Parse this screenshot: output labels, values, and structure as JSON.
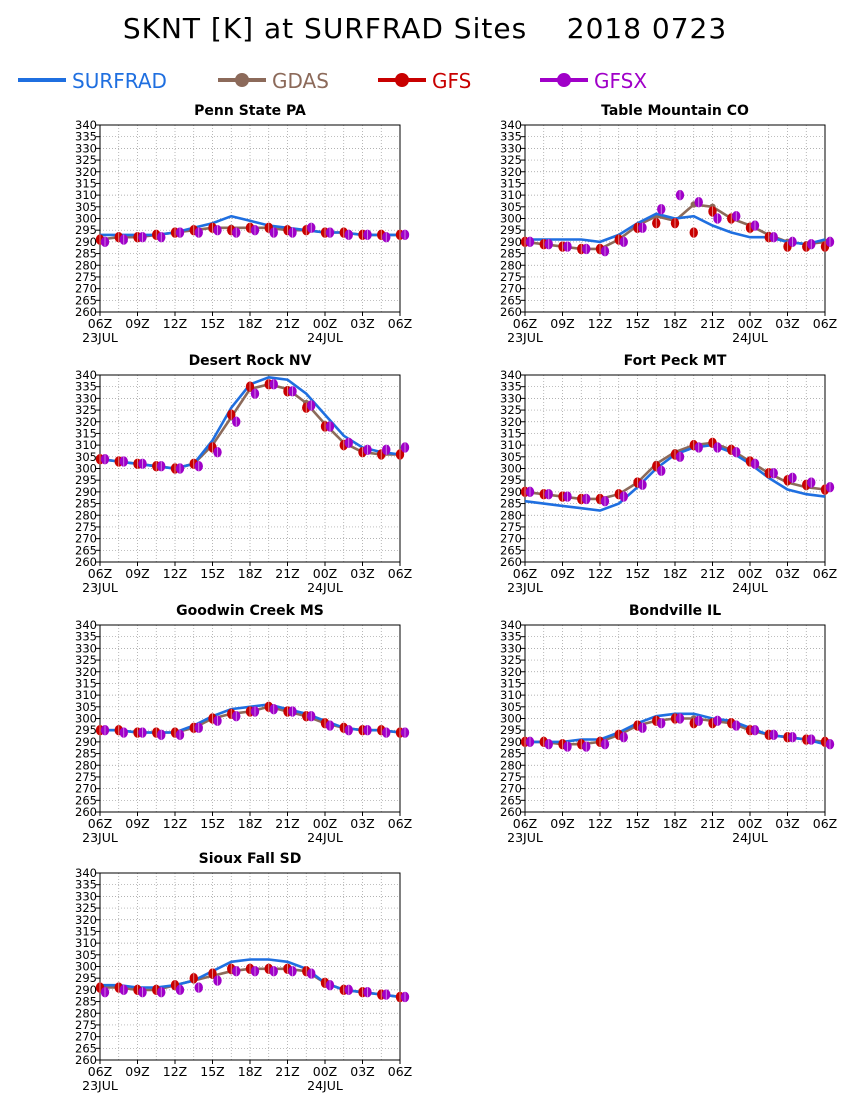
{
  "title": "SKNT [K] at SURFRAD Sites    2018 0723",
  "legend": [
    {
      "name": "SURFRAD",
      "color": "#1f6fe0",
      "marker": false
    },
    {
      "name": "GDAS",
      "color": "#8c6a5a",
      "marker": true
    },
    {
      "name": "GFS",
      "color": "#c80000",
      "marker": true
    },
    {
      "name": "GFSX",
      "color": "#a000c8",
      "marker": true
    }
  ],
  "colors": {
    "surfrad": "#1f6fe0",
    "gdas": "#8c6a5a",
    "gfs": "#c80000",
    "gfsx": "#a000c8"
  },
  "axes": {
    "ylim": [
      260,
      340
    ],
    "yticks": [
      "260",
      "265",
      "270",
      "275",
      "280",
      "285",
      "290",
      "295",
      "300",
      "305",
      "310",
      "315",
      "320",
      "325",
      "330",
      "335",
      "340"
    ],
    "xticks": [
      "06Z",
      "09Z",
      "12Z",
      "15Z",
      "18Z",
      "21Z",
      "00Z",
      "03Z",
      "06Z"
    ],
    "date_labels": [
      {
        "label": "23JUL",
        "at": "06Z"
      },
      {
        "label": "24JUL",
        "at": "00Z"
      }
    ],
    "xlim_hours": [
      0,
      24
    ],
    "grid": true
  },
  "chart_data": [
    {
      "type": "line",
      "title": "Penn State PA",
      "x_hours_from_06Z": [
        0,
        1.5,
        3,
        4.5,
        6,
        7.5,
        9,
        10.5,
        12,
        13.5,
        15,
        16.5,
        18,
        19.5,
        21,
        22.5,
        24
      ],
      "series": [
        {
          "name": "SURFRAD",
          "values": [
            293,
            293,
            293,
            293,
            294,
            296,
            298,
            301,
            299,
            297,
            296,
            295,
            294,
            294,
            293,
            293,
            293
          ]
        },
        {
          "name": "GDAS",
          "values": [
            291,
            292,
            292,
            293,
            294,
            295,
            296,
            296,
            296,
            296,
            295,
            295,
            294,
            294,
            293,
            293,
            293
          ]
        },
        {
          "name": "GFS",
          "values": [
            291,
            292,
            292,
            293,
            294,
            295,
            296,
            295,
            296,
            296,
            295,
            295,
            294,
            294,
            293,
            293,
            293
          ]
        },
        {
          "name": "GFSX",
          "values": [
            290,
            291,
            292,
            292,
            294,
            294,
            295,
            294,
            295,
            294,
            294,
            296,
            294,
            293,
            293,
            292,
            293
          ]
        }
      ]
    },
    {
      "type": "line",
      "title": "Table Mountain CO",
      "x_hours_from_06Z": [
        0,
        1.5,
        3,
        4.5,
        6,
        7.5,
        9,
        10.5,
        12,
        13.5,
        15,
        16.5,
        18,
        19.5,
        21,
        22.5,
        24
      ],
      "series": [
        {
          "name": "SURFRAD",
          "values": [
            291,
            291,
            291,
            291,
            290,
            293,
            298,
            302,
            300,
            301,
            297,
            294,
            292,
            292,
            290,
            289,
            291
          ]
        },
        {
          "name": "GDAS",
          "values": [
            290,
            289,
            288,
            287,
            287,
            291,
            297,
            301,
            299,
            306,
            305,
            300,
            297,
            293,
            290,
            289,
            290
          ]
        },
        {
          "name": "GFS",
          "values": [
            290,
            289,
            288,
            287,
            287,
            291,
            296,
            298,
            298,
            294,
            303,
            300,
            296,
            292,
            288,
            288,
            288
          ]
        },
        {
          "name": "GFSX",
          "values": [
            290,
            289,
            288,
            287,
            286,
            290,
            296,
            304,
            310,
            307,
            300,
            301,
            297,
            292,
            290,
            289,
            290
          ]
        }
      ]
    },
    {
      "type": "line",
      "title": "Desert Rock NV",
      "x_hours_from_06Z": [
        0,
        1.5,
        3,
        4.5,
        6,
        7.5,
        9,
        10.5,
        12,
        13.5,
        15,
        16.5,
        18,
        19.5,
        21,
        22.5,
        24
      ],
      "series": [
        {
          "name": "SURFRAD",
          "values": [
            304,
            303,
            302,
            301,
            300,
            302,
            312,
            326,
            336,
            339,
            338,
            332,
            323,
            314,
            309,
            307,
            306
          ]
        },
        {
          "name": "GDAS",
          "values": [
            304,
            303,
            302,
            301,
            300,
            302,
            310,
            322,
            334,
            336,
            334,
            328,
            319,
            311,
            307,
            306,
            306
          ]
        },
        {
          "name": "GFS",
          "values": [
            304,
            303,
            302,
            301,
            300,
            302,
            309,
            323,
            335,
            336,
            333,
            326,
            318,
            310,
            307,
            306,
            306
          ]
        },
        {
          "name": "GFSX",
          "values": [
            304,
            303,
            302,
            301,
            300,
            301,
            307,
            320,
            332,
            336,
            333,
            327,
            318,
            311,
            308,
            308,
            309
          ]
        }
      ]
    },
    {
      "type": "line",
      "title": "Fort Peck MT",
      "x_hours_from_06Z": [
        0,
        1.5,
        3,
        4.5,
        6,
        7.5,
        9,
        10.5,
        12,
        13.5,
        15,
        16.5,
        18,
        19.5,
        21,
        22.5,
        24
      ],
      "series": [
        {
          "name": "SURFRAD",
          "values": [
            286,
            285,
            284,
            283,
            282,
            285,
            292,
            300,
            306,
            309,
            310,
            307,
            302,
            296,
            291,
            289,
            288
          ]
        },
        {
          "name": "GDAS",
          "values": [
            290,
            289,
            288,
            287,
            287,
            289,
            294,
            302,
            307,
            310,
            311,
            308,
            303,
            298,
            294,
            292,
            291
          ]
        },
        {
          "name": "GFS",
          "values": [
            290,
            289,
            288,
            287,
            287,
            289,
            294,
            301,
            306,
            310,
            311,
            308,
            303,
            298,
            295,
            293,
            291
          ]
        },
        {
          "name": "GFSX",
          "values": [
            290,
            289,
            288,
            287,
            286,
            288,
            293,
            299,
            305,
            309,
            309,
            307,
            302,
            298,
            296,
            294,
            292
          ]
        }
      ]
    },
    {
      "type": "line",
      "title": "Goodwin Creek MS",
      "x_hours_from_06Z": [
        0,
        1.5,
        3,
        4.5,
        6,
        7.5,
        9,
        10.5,
        12,
        13.5,
        15,
        16.5,
        18,
        19.5,
        21,
        22.5,
        24
      ],
      "series": [
        {
          "name": "SURFRAD",
          "values": [
            295,
            295,
            294,
            294,
            294,
            297,
            301,
            304,
            305,
            306,
            304,
            302,
            299,
            296,
            295,
            295,
            294
          ]
        },
        {
          "name": "GDAS",
          "values": [
            295,
            295,
            294,
            294,
            294,
            296,
            300,
            302,
            303,
            305,
            303,
            301,
            298,
            296,
            295,
            295,
            294
          ]
        },
        {
          "name": "GFS",
          "values": [
            295,
            295,
            294,
            294,
            294,
            296,
            300,
            302,
            303,
            305,
            303,
            301,
            298,
            296,
            295,
            295,
            294
          ]
        },
        {
          "name": "GFSX",
          "values": [
            295,
            294,
            294,
            293,
            293,
            296,
            299,
            301,
            303,
            304,
            303,
            301,
            297,
            295,
            295,
            294,
            294
          ]
        }
      ]
    },
    {
      "type": "line",
      "title": "Bondville IL",
      "x_hours_from_06Z": [
        0,
        1.5,
        3,
        4.5,
        6,
        7.5,
        9,
        10.5,
        12,
        13.5,
        15,
        16.5,
        18,
        19.5,
        21,
        22.5,
        24
      ],
      "series": [
        {
          "name": "SURFRAD",
          "values": [
            290,
            290,
            290,
            291,
            291,
            294,
            298,
            301,
            302,
            302,
            300,
            299,
            296,
            293,
            292,
            291,
            289
          ]
        },
        {
          "name": "GDAS",
          "values": [
            290,
            290,
            289,
            289,
            290,
            293,
            297,
            299,
            300,
            300,
            299,
            298,
            295,
            293,
            292,
            291,
            290
          ]
        },
        {
          "name": "GFS",
          "values": [
            290,
            290,
            289,
            289,
            290,
            293,
            297,
            299,
            300,
            298,
            298,
            298,
            295,
            293,
            292,
            291,
            290
          ]
        },
        {
          "name": "GFSX",
          "values": [
            290,
            289,
            288,
            288,
            289,
            292,
            296,
            298,
            300,
            299,
            299,
            297,
            295,
            293,
            292,
            291,
            289
          ]
        }
      ]
    },
    {
      "type": "line",
      "title": "Sioux Fall SD",
      "x_hours_from_06Z": [
        0,
        1.5,
        3,
        4.5,
        6,
        7.5,
        9,
        10.5,
        12,
        13.5,
        15,
        16.5,
        18,
        19.5,
        21,
        22.5,
        24
      ],
      "series": [
        {
          "name": "SURFRAD",
          "values": [
            292,
            292,
            291,
            291,
            292,
            294,
            298,
            302,
            303,
            303,
            302,
            299,
            293,
            290,
            289,
            288,
            287
          ]
        },
        {
          "name": "GDAS",
          "values": [
            291,
            291,
            290,
            290,
            292,
            294,
            296,
            298,
            299,
            299,
            299,
            298,
            293,
            290,
            289,
            288,
            287
          ]
        },
        {
          "name": "GFS",
          "values": [
            291,
            291,
            290,
            290,
            292,
            295,
            297,
            299,
            299,
            299,
            299,
            298,
            293,
            290,
            289,
            288,
            287
          ]
        },
        {
          "name": "GFSX",
          "values": [
            289,
            290,
            289,
            289,
            290,
            291,
            294,
            298,
            298,
            298,
            298,
            297,
            292,
            290,
            289,
            288,
            287
          ]
        }
      ]
    }
  ]
}
